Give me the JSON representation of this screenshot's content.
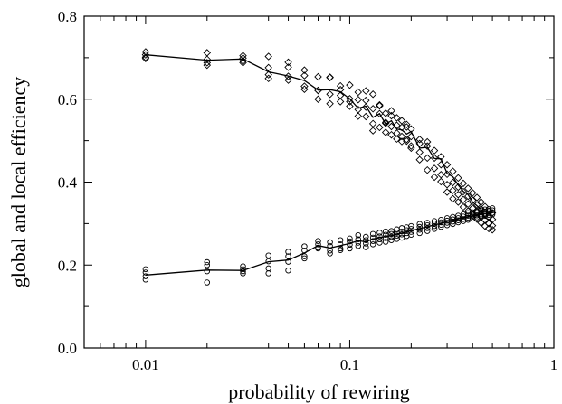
{
  "chart_data": {
    "type": "scatter",
    "title": "",
    "xlabel": "probability of rewiring",
    "ylabel": "global and local efficiency",
    "x_scale": "log",
    "xlim": [
      0.005,
      1
    ],
    "ylim": [
      0,
      0.8
    ],
    "x_ticks": [
      0.01,
      0.1,
      1
    ],
    "x_tick_labels": [
      "0.01",
      "0.1",
      "1"
    ],
    "y_ticks": [
      0,
      0.2,
      0.4,
      0.6,
      0.8
    ],
    "y_tick_labels": [
      "0.0",
      "0.2",
      "0.4",
      "0.6",
      "0.8"
    ],
    "grid": false,
    "legend": "none",
    "series": [
      {
        "marker": "diamond",
        "mean_line": {
          "x": [
            0.01,
            0.02,
            0.03,
            0.04,
            0.05,
            0.06,
            0.07,
            0.08,
            0.09,
            0.1,
            0.11,
            0.12,
            0.13,
            0.14,
            0.15,
            0.16,
            0.17,
            0.18,
            0.19,
            0.2,
            0.22,
            0.24,
            0.26,
            0.28,
            0.3,
            0.32,
            0.34,
            0.36,
            0.38,
            0.4,
            0.42,
            0.44,
            0.46,
            0.48,
            0.5
          ],
          "y": [
            0.707,
            0.694,
            0.697,
            0.666,
            0.656,
            0.645,
            0.622,
            0.623,
            0.618,
            0.601,
            0.578,
            0.583,
            0.556,
            0.565,
            0.54,
            0.548,
            0.528,
            0.526,
            0.516,
            0.522,
            0.482,
            0.484,
            0.457,
            0.456,
            0.421,
            0.413,
            0.393,
            0.378,
            0.37,
            0.352,
            0.343,
            0.334,
            0.314,
            0.31,
            0.305
          ]
        },
        "points": {
          "x": [
            0.01,
            0.01,
            0.01,
            0.01,
            0.02,
            0.02,
            0.02,
            0.02,
            0.03,
            0.03,
            0.03,
            0.03,
            0.04,
            0.04,
            0.04,
            0.04,
            0.05,
            0.05,
            0.05,
            0.05,
            0.06,
            0.06,
            0.06,
            0.06,
            0.07,
            0.07,
            0.07,
            0.07,
            0.08,
            0.08,
            0.08,
            0.08,
            0.09,
            0.09,
            0.09,
            0.09,
            0.1,
            0.1,
            0.1,
            0.1,
            0.11,
            0.11,
            0.11,
            0.11,
            0.12,
            0.12,
            0.12,
            0.12,
            0.13,
            0.13,
            0.13,
            0.13,
            0.14,
            0.14,
            0.14,
            0.14,
            0.15,
            0.15,
            0.15,
            0.15,
            0.16,
            0.16,
            0.16,
            0.16,
            0.17,
            0.17,
            0.17,
            0.17,
            0.18,
            0.18,
            0.18,
            0.18,
            0.19,
            0.19,
            0.19,
            0.19,
            0.2,
            0.2,
            0.2,
            0.2,
            0.22,
            0.22,
            0.22,
            0.22,
            0.24,
            0.24,
            0.24,
            0.24,
            0.26,
            0.26,
            0.26,
            0.26,
            0.28,
            0.28,
            0.28,
            0.28,
            0.3,
            0.3,
            0.3,
            0.3,
            0.32,
            0.32,
            0.32,
            0.32,
            0.34,
            0.34,
            0.34,
            0.34,
            0.36,
            0.36,
            0.36,
            0.36,
            0.38,
            0.38,
            0.38,
            0.38,
            0.4,
            0.4,
            0.4,
            0.4,
            0.42,
            0.42,
            0.42,
            0.42,
            0.44,
            0.44,
            0.44,
            0.44,
            0.46,
            0.46,
            0.46,
            0.46,
            0.48,
            0.48,
            0.48,
            0.48,
            0.5,
            0.5,
            0.5,
            0.5
          ],
          "y": [
            0.714,
            0.707,
            0.701,
            0.698,
            0.712,
            0.696,
            0.688,
            0.682,
            0.705,
            0.699,
            0.692,
            0.688,
            0.703,
            0.676,
            0.659,
            0.65,
            0.689,
            0.677,
            0.655,
            0.646,
            0.67,
            0.657,
            0.631,
            0.624,
            0.654,
            0.621,
            0.6,
            0.621,
            0.652,
            0.653,
            0.612,
            0.589,
            0.632,
            0.623,
            0.609,
            0.594,
            0.634,
            0.601,
            0.583,
            0.594,
            0.599,
            0.575,
            0.559,
            0.617,
            0.62,
            0.597,
            0.581,
            0.558,
            0.612,
            0.577,
            0.541,
            0.524,
            0.584,
            0.565,
            0.532,
            0.586,
            0.566,
            0.542,
            0.52,
            0.544,
            0.572,
            0.56,
            0.534,
            0.514,
            0.555,
            0.537,
            0.504,
            0.518,
            0.548,
            0.532,
            0.51,
            0.498,
            0.539,
            0.533,
            0.503,
            0.499,
            0.528,
            0.51,
            0.487,
            0.482,
            0.503,
            0.493,
            0.472,
            0.454,
            0.497,
            0.487,
            0.458,
            0.429,
            0.476,
            0.458,
            0.433,
            0.412,
            0.461,
            0.442,
            0.418,
            0.401,
            0.442,
            0.419,
            0.394,
            0.376,
            0.426,
            0.399,
            0.38,
            0.36,
            0.41,
            0.388,
            0.37,
            0.352,
            0.397,
            0.377,
            0.358,
            0.34,
            0.385,
            0.366,
            0.347,
            0.33,
            0.374,
            0.356,
            0.337,
            0.32,
            0.363,
            0.345,
            0.328,
            0.311,
            0.352,
            0.335,
            0.318,
            0.302,
            0.341,
            0.325,
            0.309,
            0.294,
            0.33,
            0.315,
            0.3,
            0.288,
            0.326,
            0.31,
            0.295,
            0.285
          ]
        }
      },
      {
        "marker": "circle",
        "mean_line": {
          "x": [
            0.01,
            0.02,
            0.03,
            0.04,
            0.05,
            0.06,
            0.07,
            0.08,
            0.09,
            0.1,
            0.11,
            0.12,
            0.13,
            0.14,
            0.15,
            0.16,
            0.17,
            0.18,
            0.19,
            0.2,
            0.22,
            0.24,
            0.26,
            0.28,
            0.3,
            0.32,
            0.34,
            0.36,
            0.38,
            0.4,
            0.42,
            0.44,
            0.46,
            0.48,
            0.5
          ],
          "y": [
            0.176,
            0.188,
            0.187,
            0.208,
            0.212,
            0.229,
            0.247,
            0.241,
            0.247,
            0.252,
            0.259,
            0.256,
            0.263,
            0.266,
            0.269,
            0.271,
            0.274,
            0.277,
            0.28,
            0.283,
            0.288,
            0.292,
            0.297,
            0.3,
            0.305,
            0.308,
            0.311,
            0.314,
            0.317,
            0.319,
            0.321,
            0.323,
            0.324,
            0.325,
            0.326
          ]
        },
        "points": {
          "x": [
            0.01,
            0.01,
            0.01,
            0.01,
            0.02,
            0.02,
            0.02,
            0.02,
            0.03,
            0.03,
            0.03,
            0.03,
            0.04,
            0.04,
            0.04,
            0.04,
            0.05,
            0.05,
            0.05,
            0.05,
            0.06,
            0.06,
            0.06,
            0.06,
            0.07,
            0.07,
            0.07,
            0.07,
            0.08,
            0.08,
            0.08,
            0.08,
            0.09,
            0.09,
            0.09,
            0.09,
            0.1,
            0.1,
            0.1,
            0.1,
            0.11,
            0.11,
            0.11,
            0.11,
            0.12,
            0.12,
            0.12,
            0.12,
            0.13,
            0.13,
            0.13,
            0.13,
            0.14,
            0.14,
            0.14,
            0.14,
            0.15,
            0.15,
            0.15,
            0.15,
            0.16,
            0.16,
            0.16,
            0.16,
            0.17,
            0.17,
            0.17,
            0.17,
            0.18,
            0.18,
            0.18,
            0.18,
            0.19,
            0.19,
            0.19,
            0.19,
            0.2,
            0.2,
            0.2,
            0.2,
            0.22,
            0.22,
            0.22,
            0.22,
            0.24,
            0.24,
            0.24,
            0.24,
            0.26,
            0.26,
            0.26,
            0.26,
            0.28,
            0.28,
            0.28,
            0.28,
            0.3,
            0.3,
            0.3,
            0.3,
            0.32,
            0.32,
            0.32,
            0.32,
            0.34,
            0.34,
            0.34,
            0.34,
            0.36,
            0.36,
            0.36,
            0.36,
            0.38,
            0.38,
            0.38,
            0.38,
            0.4,
            0.4,
            0.4,
            0.4,
            0.42,
            0.42,
            0.42,
            0.42,
            0.44,
            0.44,
            0.44,
            0.44,
            0.46,
            0.46,
            0.46,
            0.46,
            0.48,
            0.48,
            0.48,
            0.48,
            0.5,
            0.5,
            0.5,
            0.5
          ],
          "y": [
            0.19,
            0.182,
            0.173,
            0.165,
            0.207,
            0.2,
            0.185,
            0.158,
            0.197,
            0.19,
            0.185,
            0.18,
            0.223,
            0.209,
            0.192,
            0.18,
            0.232,
            0.221,
            0.208,
            0.187,
            0.245,
            0.235,
            0.221,
            0.216,
            0.258,
            0.25,
            0.242,
            0.24,
            0.255,
            0.246,
            0.235,
            0.228,
            0.26,
            0.25,
            0.24,
            0.236,
            0.264,
            0.257,
            0.249,
            0.24,
            0.272,
            0.262,
            0.254,
            0.246,
            0.268,
            0.26,
            0.252,
            0.243,
            0.275,
            0.266,
            0.258,
            0.25,
            0.278,
            0.269,
            0.262,
            0.254,
            0.281,
            0.273,
            0.265,
            0.256,
            0.282,
            0.275,
            0.268,
            0.26,
            0.286,
            0.278,
            0.271,
            0.263,
            0.289,
            0.281,
            0.274,
            0.266,
            0.291,
            0.284,
            0.277,
            0.27,
            0.294,
            0.287,
            0.28,
            0.273,
            0.299,
            0.292,
            0.285,
            0.277,
            0.302,
            0.296,
            0.289,
            0.282,
            0.306,
            0.3,
            0.294,
            0.287,
            0.309,
            0.303,
            0.297,
            0.292,
            0.313,
            0.307,
            0.302,
            0.296,
            0.316,
            0.31,
            0.305,
            0.299,
            0.319,
            0.313,
            0.308,
            0.303,
            0.322,
            0.317,
            0.311,
            0.306,
            0.325,
            0.319,
            0.314,
            0.309,
            0.327,
            0.322,
            0.317,
            0.312,
            0.33,
            0.325,
            0.32,
            0.315,
            0.332,
            0.327,
            0.322,
            0.318,
            0.334,
            0.329,
            0.324,
            0.319,
            0.335,
            0.33,
            0.325,
            0.321,
            0.337,
            0.332,
            0.326,
            0.322
          ]
        }
      }
    ]
  }
}
